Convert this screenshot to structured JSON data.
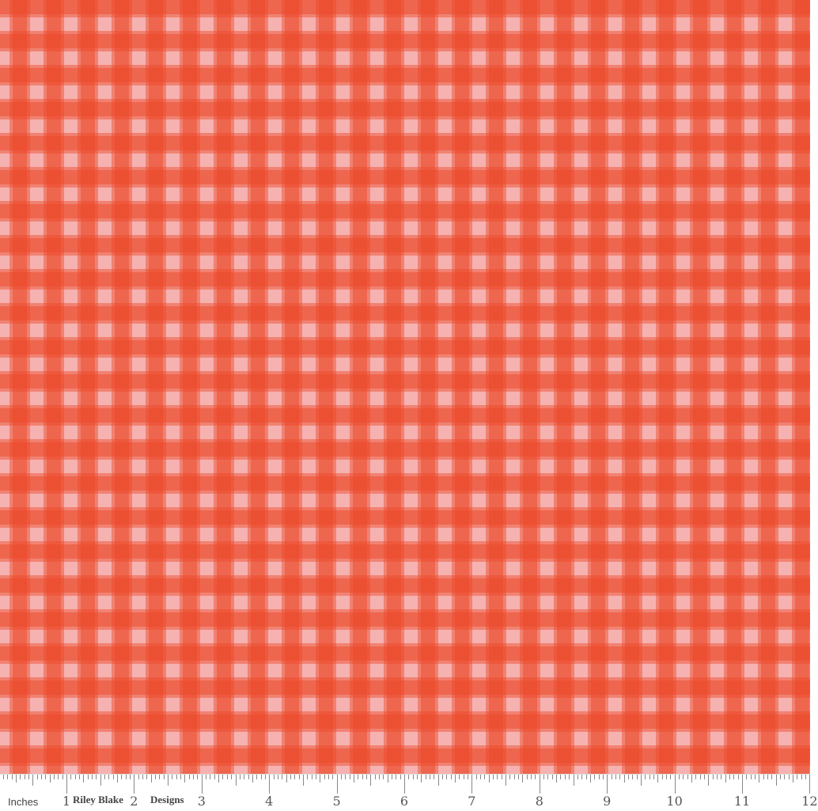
{
  "fabric": {
    "pattern": "gingham",
    "colors": {
      "dark": "#e8502e",
      "medium": "#f07868",
      "light": "#f5b2b0"
    }
  },
  "ruler": {
    "unit_label": "Inches",
    "brand_words": [
      "Riley Blake",
      "Designs"
    ],
    "numbers": [
      "1",
      "2",
      "3",
      "4",
      "5",
      "6",
      "7",
      "8",
      "9",
      "10",
      "11",
      "12"
    ]
  }
}
